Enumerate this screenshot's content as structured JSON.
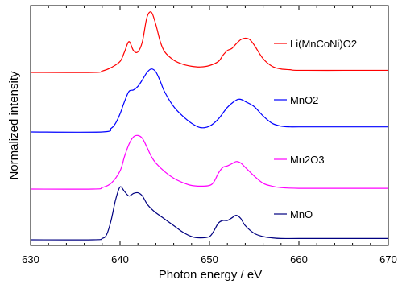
{
  "chart_data": {
    "type": "line",
    "xlabel": "Photon energy / eV",
    "ylabel": "Normalized intensity",
    "xlim": [
      630,
      670
    ],
    "xticks": [
      "630",
      "640",
      "650",
      "660",
      "670"
    ],
    "yticks_shown": false,
    "grid": false,
    "legend": "inline labels beside each trace, right side",
    "series": [
      {
        "name": "Li(MnCoNi)O2",
        "color": "#ff0000",
        "x": [
          630,
          637,
          638,
          639,
          640,
          640.5,
          641,
          641.5,
          642,
          642.5,
          643,
          643.5,
          644,
          644.5,
          645,
          646,
          647,
          648,
          649,
          650,
          651,
          651.5,
          652,
          652.5,
          653,
          653.5,
          654,
          654.5,
          655,
          656,
          657,
          658,
          659,
          660,
          665,
          670
        ],
        "y": [
          0.0,
          0.0,
          0.02,
          0.07,
          0.16,
          0.3,
          0.45,
          0.32,
          0.3,
          0.45,
          0.8,
          0.88,
          0.7,
          0.45,
          0.3,
          0.18,
          0.12,
          0.09,
          0.08,
          0.1,
          0.16,
          0.25,
          0.32,
          0.35,
          0.42,
          0.48,
          0.5,
          0.48,
          0.4,
          0.2,
          0.09,
          0.05,
          0.04,
          0.03,
          0.03,
          0.03
        ]
      },
      {
        "name": "MnO2",
        "color": "#0000ff",
        "x": [
          630,
          638,
          639,
          639.5,
          640,
          640.5,
          641,
          641.5,
          642,
          642.5,
          643,
          643.5,
          644,
          644.5,
          645,
          646,
          647,
          648,
          649,
          650,
          651,
          652,
          653,
          653.5,
          654,
          655,
          656,
          657,
          658,
          659,
          660,
          665,
          670
        ],
        "y": [
          0.0,
          0.0,
          0.05,
          0.12,
          0.25,
          0.42,
          0.56,
          0.58,
          0.63,
          0.72,
          0.82,
          0.87,
          0.83,
          0.7,
          0.55,
          0.35,
          0.22,
          0.12,
          0.06,
          0.08,
          0.18,
          0.34,
          0.44,
          0.45,
          0.42,
          0.35,
          0.22,
          0.12,
          0.08,
          0.07,
          0.07,
          0.07,
          0.07
        ]
      },
      {
        "name": "Mn2O3",
        "color": "#ff00ff",
        "x": [
          630,
          637,
          638,
          639,
          640,
          640.5,
          641,
          641.5,
          642,
          642.5,
          643,
          643.5,
          644,
          645,
          646,
          647,
          648,
          649,
          650,
          650.5,
          651,
          651.5,
          652,
          652.5,
          653,
          653.5,
          654,
          655,
          656,
          657,
          658,
          660,
          665,
          670
        ],
        "y": [
          0.0,
          0.0,
          0.02,
          0.08,
          0.25,
          0.45,
          0.62,
          0.72,
          0.74,
          0.7,
          0.58,
          0.45,
          0.36,
          0.24,
          0.15,
          0.09,
          0.05,
          0.04,
          0.05,
          0.1,
          0.22,
          0.3,
          0.32,
          0.35,
          0.38,
          0.36,
          0.3,
          0.18,
          0.08,
          0.04,
          0.02,
          0.01,
          0.01,
          0.01
        ]
      },
      {
        "name": "MnO",
        "color": "#000080",
        "x": [
          630,
          637,
          638,
          638.5,
          639,
          639.5,
          640,
          640.5,
          641,
          641.5,
          642,
          642.5,
          643,
          643.5,
          644,
          645,
          646,
          647,
          648,
          649,
          650,
          650.5,
          651,
          651.5,
          652,
          652.5,
          653,
          653.5,
          654,
          655,
          656,
          657,
          658,
          660,
          665,
          670
        ],
        "y": [
          0.0,
          0.0,
          0.02,
          0.08,
          0.3,
          0.62,
          0.82,
          0.75,
          0.68,
          0.72,
          0.73,
          0.68,
          0.56,
          0.48,
          0.42,
          0.32,
          0.22,
          0.12,
          0.05,
          0.03,
          0.05,
          0.14,
          0.26,
          0.3,
          0.3,
          0.34,
          0.38,
          0.33,
          0.22,
          0.1,
          0.05,
          0.03,
          0.02,
          0.02,
          0.02,
          0.02
        ]
      }
    ]
  }
}
